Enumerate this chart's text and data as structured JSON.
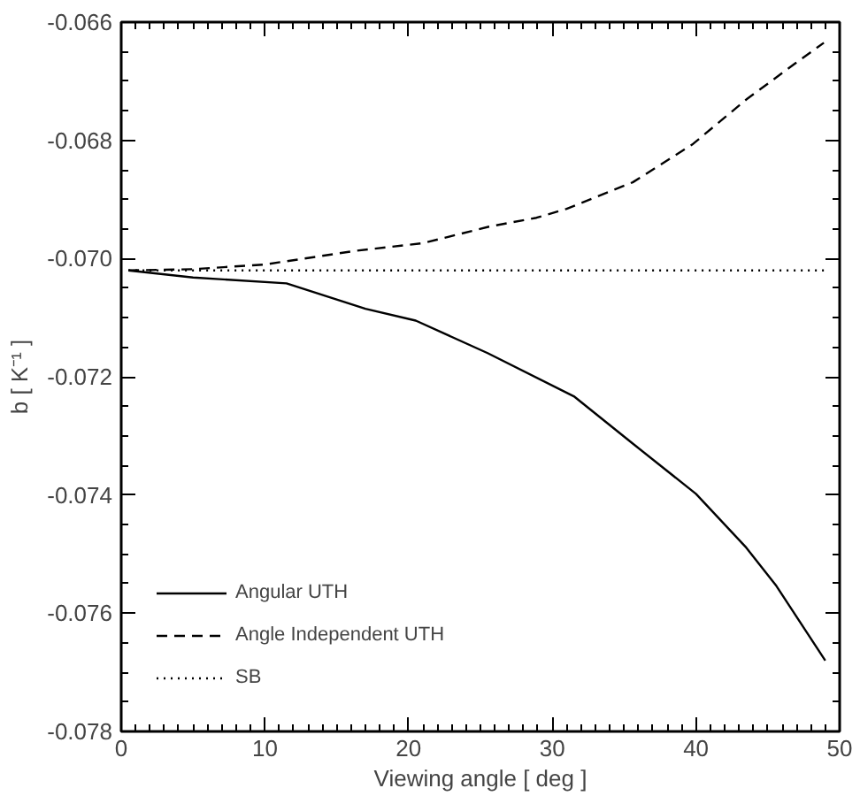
{
  "chart_data": {
    "type": "line",
    "xlabel": "Viewing angle [ deg ]",
    "ylabel": "b [ K⁻¹ ]",
    "xlim": [
      0,
      50
    ],
    "ylim": [
      -0.078,
      -0.066
    ],
    "xticks": [
      0,
      10,
      20,
      30,
      40,
      50
    ],
    "yticks": [
      {
        "value": -0.078,
        "label": "-0.078"
      },
      -0.076,
      -0.074,
      -0.072,
      {
        "value": -0.07,
        "label": "-0.070"
      },
      -0.068,
      -0.066
    ],
    "grid": false,
    "legend": "bottom left",
    "series": [
      {
        "name": "Angular UTH",
        "color": "#000000",
        "line_style": "solid",
        "x": [
          0.5,
          5,
          11.5,
          17,
          20.5,
          25.5,
          31.5,
          35.6,
          40,
          43.5,
          45.6,
          49
        ],
        "values": [
          -0.0702,
          -0.07032,
          -0.07042,
          -0.07085,
          -0.07105,
          -0.0716,
          -0.07233,
          -0.07313,
          -0.07398,
          -0.07489,
          -0.07554,
          -0.0768
        ]
      },
      {
        "name": "Angle Independent UTH",
        "color": "#000000",
        "line_style": "dashed",
        "x": [
          0.5,
          5,
          10,
          16.3,
          21,
          25.6,
          28.9,
          31,
          35.6,
          39.8,
          43.5,
          46.9,
          48.9
        ],
        "values": [
          -0.0702,
          -0.07018,
          -0.0701,
          -0.06987,
          -0.06974,
          -0.06946,
          -0.06931,
          -0.06916,
          -0.06871,
          -0.06806,
          -0.06731,
          -0.0667,
          -0.06635
        ]
      },
      {
        "name": "SB",
        "color": "#000000",
        "line_style": "dotted",
        "x": [
          0.5,
          49
        ],
        "values": [
          -0.0702,
          -0.0702
        ]
      }
    ]
  }
}
